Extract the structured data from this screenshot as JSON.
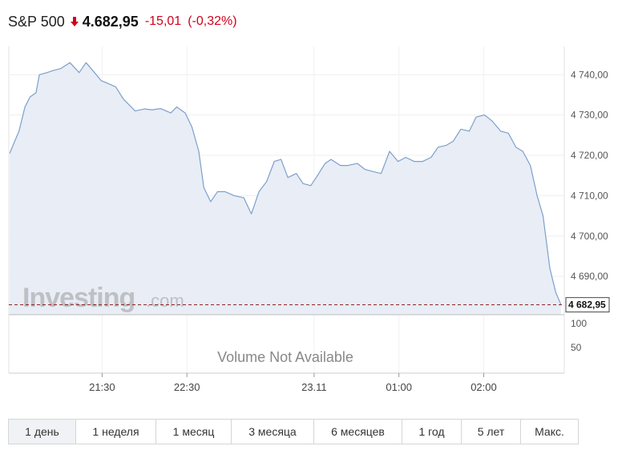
{
  "header": {
    "symbol": "S&P 500",
    "price": "4.682,95",
    "change": "-15,01",
    "change_pct": "(-0,32%)"
  },
  "watermark": {
    "brand": "Investing",
    "suffix": ".com"
  },
  "volume": {
    "text": "Volume Not Available",
    "ticks": [
      "100",
      "50"
    ]
  },
  "colors": {
    "line": "#7d9fcb",
    "area": "#e8edf6",
    "down": "#d0021b",
    "last_line": "#8b1a1a"
  },
  "chart_data": {
    "type": "area",
    "title": "",
    "x_ticks": [
      {
        "label": "21:30",
        "t": 1.5
      },
      {
        "label": "22:30",
        "t": 2.5
      },
      {
        "label": "23.11",
        "t": 4.0
      },
      {
        "label": "01:00",
        "t": 5.0
      },
      {
        "label": "02:00",
        "t": 6.0
      }
    ],
    "x_range": [
      0.4,
      6.95
    ],
    "y_ticks": [
      4690,
      4700,
      4710,
      4720,
      4730,
      4740
    ],
    "y_tick_labels": [
      "4 690,00",
      "4 700,00",
      "4 710,00",
      "4 720,00",
      "4 730,00",
      "4 740,00"
    ],
    "ylim": [
      4680.5,
      4747
    ],
    "last_value": 4682.95,
    "last_value_label": "4 682,95",
    "series": [
      {
        "t": [
          0.41,
          0.46,
          0.52,
          0.59,
          0.65,
          0.72,
          0.76,
          0.85,
          0.92,
          1.01,
          1.12,
          1.23,
          1.31,
          1.41,
          1.49,
          1.55,
          1.66,
          1.75,
          1.89,
          2.0,
          2.09,
          2.19,
          2.31,
          2.38,
          2.48,
          2.56,
          2.64,
          2.7,
          2.78,
          2.86,
          2.95,
          3.06,
          3.17,
          3.26,
          3.35,
          3.44,
          3.53,
          3.61,
          3.69,
          3.79,
          3.87,
          3.96,
          4.04,
          4.13,
          4.2,
          4.31,
          4.4,
          4.51,
          4.6,
          4.69,
          4.79,
          4.89,
          4.99,
          5.08,
          5.18,
          5.28,
          5.38,
          5.46,
          5.56,
          5.64,
          5.73,
          5.83,
          5.91,
          6.01,
          6.1,
          6.2,
          6.29,
          6.38,
          6.46,
          6.55,
          6.63,
          6.7,
          6.78,
          6.85,
          6.91
        ],
        "values": [
          4720.5,
          4723,
          4726,
          4732,
          4734.5,
          4735.5,
          4740,
          4740.5,
          4741,
          4741.5,
          4743,
          4740.5,
          4743,
          4740.5,
          4738.5,
          4738,
          4737,
          4734,
          4731,
          4731.5,
          4731.3,
          4731.6,
          4730.5,
          4732,
          4730.5,
          4727,
          4721,
          4712,
          4708.5,
          4711,
          4711,
          4710,
          4709.5,
          4705.5,
          4711,
          4713.5,
          4718.5,
          4719,
          4714.5,
          4715.5,
          4713,
          4712.5,
          4715,
          4718,
          4719,
          4717.5,
          4717.5,
          4718,
          4716.5,
          4716,
          4715.5,
          4721,
          4718.5,
          4719.5,
          4718.5,
          4718.5,
          4719.5,
          4722,
          4722.5,
          4723.5,
          4726.5,
          4726,
          4729.5,
          4730,
          4728.5,
          4726,
          4725.5,
          4722,
          4721,
          4717.5,
          4710,
          4705,
          4692,
          4686,
          4683
        ]
      }
    ],
    "volume_ticks": [
      100,
      50
    ]
  },
  "timeframes": {
    "items": [
      {
        "label": "1 день",
        "active": true
      },
      {
        "label": "1 неделя",
        "active": false
      },
      {
        "label": "1 месяц",
        "active": false
      },
      {
        "label": "3 месяца",
        "active": false
      },
      {
        "label": "6 месяцев",
        "active": false
      },
      {
        "label": "1 год",
        "active": false
      },
      {
        "label": "5 лет",
        "active": false
      },
      {
        "label": "Макс.",
        "active": false
      }
    ]
  }
}
